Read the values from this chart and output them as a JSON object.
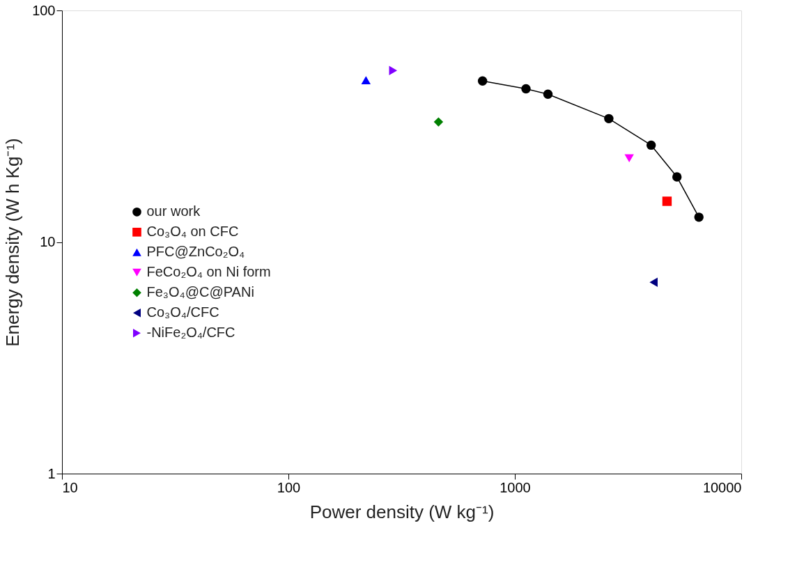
{
  "chart_data": {
    "type": "scatter",
    "xlabel": "Power density (W kg⁻¹)",
    "ylabel": "Energy density (W h Kg⁻¹)",
    "log": "xy",
    "xlim": [
      10,
      10000
    ],
    "ylim": [
      1,
      100
    ],
    "xticks": [
      10,
      100,
      1000,
      10000
    ],
    "yticks": [
      1,
      10,
      100
    ],
    "grid": false,
    "legend": "left",
    "series": [
      {
        "name": "our work",
        "type": "line",
        "marker": "circle",
        "color": "#000000",
        "x": [
          720,
          1120,
          1400,
          2600,
          4000,
          5200,
          6500
        ],
        "values": [
          49.6,
          45.9,
          43.5,
          34.1,
          26.2,
          19.1,
          12.8
        ]
      },
      {
        "name": "Co₃O₄ on CFC",
        "type": "scatter",
        "marker": "square",
        "color": "#ff0000",
        "x": [
          4700
        ],
        "values": [
          15
        ]
      },
      {
        "name": "PFC@ZnCo₂O₄",
        "type": "scatter",
        "marker": "triangle-up",
        "color": "#0000ff",
        "x": [
          220
        ],
        "values": [
          50
        ]
      },
      {
        "name": "FeCo₂O₄ on Ni form",
        "type": "scatter",
        "marker": "triangle-down",
        "color": "#ff00ff",
        "x": [
          3200
        ],
        "values": [
          23
        ]
      },
      {
        "name": "Fe₃O₄@C@PANi",
        "type": "scatter",
        "marker": "diamond",
        "color": "#008000",
        "x": [
          460
        ],
        "values": [
          33
        ]
      },
      {
        "name": "Co₃O₄/CFC",
        "type": "scatter",
        "marker": "triangle-left",
        "color": "#000080",
        "x": [
          4100
        ],
        "values": [
          6.7
        ]
      },
      {
        "name": "-NiFe₂O₄/CFC",
        "type": "scatter",
        "marker": "triangle-right",
        "color": "#8000ff",
        "x": [
          290
        ],
        "values": [
          55
        ]
      }
    ]
  }
}
